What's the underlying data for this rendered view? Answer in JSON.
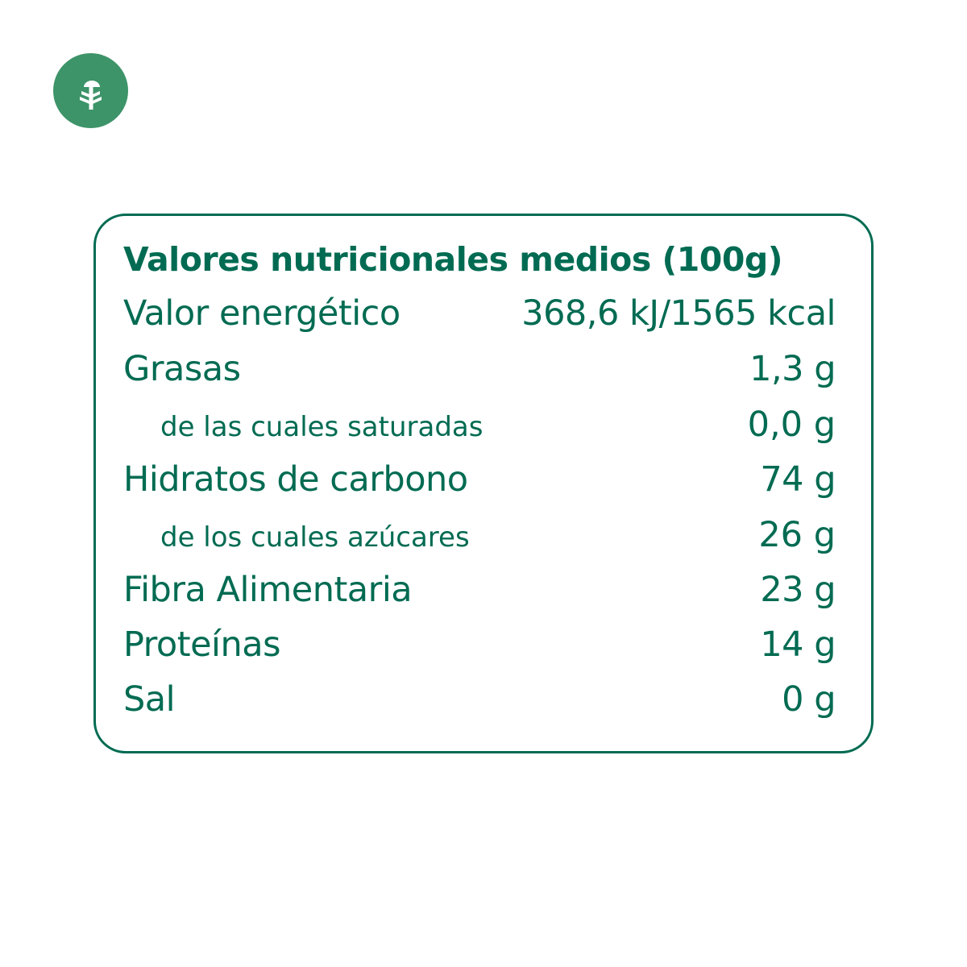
{
  "brand": {
    "icon": "tree-icon",
    "color": "#3D9469"
  },
  "table": {
    "title": "Valores nutricionales medios (100g)",
    "color": "#006B52",
    "rows": [
      {
        "label": "Valor energético",
        "value": "368,6 kJ/1565 kcal"
      },
      {
        "label": "Grasas",
        "value": "1,3 g"
      },
      {
        "label": "de las cuales saturadas",
        "value": "0,0 g"
      },
      {
        "label": "Hidratos de carbono",
        "value": "74 g"
      },
      {
        "label": "de los cuales azúcares",
        "value": "26 g"
      },
      {
        "label": "Fibra Alimentaria",
        "value": "23 g"
      },
      {
        "label": "Proteínas",
        "value": "14 g"
      },
      {
        "label": "Sal",
        "value": "0 g"
      }
    ]
  }
}
